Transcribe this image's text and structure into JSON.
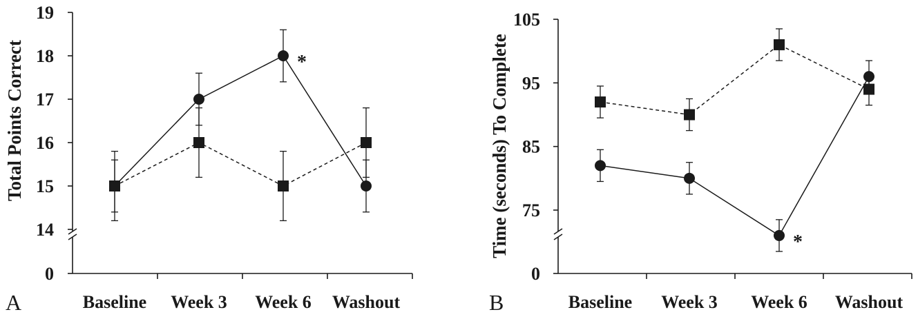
{
  "colors": {
    "ink": "#1a1a1a",
    "background": "#ffffff"
  },
  "chart_data": [
    {
      "type": "line",
      "panel_label": "A",
      "ylabel": "Total Points Correct",
      "categories": [
        "Baseline",
        "Week 3",
        "Week 6",
        "Washout"
      ],
      "y_ticks": [
        14,
        15,
        16,
        17,
        18,
        19
      ],
      "zero_label": "0",
      "ylim": [
        14,
        19
      ],
      "axis_break": true,
      "series": [
        {
          "name": "circle-solid",
          "marker": "circle",
          "line": "solid",
          "values": [
            15,
            17,
            18,
            15
          ],
          "errors": [
            0.6,
            0.6,
            0.6,
            0.6
          ]
        },
        {
          "name": "square-dashed",
          "marker": "square",
          "line": "dashed",
          "values": [
            15,
            16,
            15,
            16
          ],
          "errors": [
            0.8,
            0.8,
            0.8,
            0.8
          ]
        }
      ],
      "annotations": [
        {
          "text": "*",
          "series": 0,
          "index": 2
        }
      ]
    },
    {
      "type": "line",
      "panel_label": "B",
      "ylabel": "Time (seconds) To Complete",
      "categories": [
        "Baseline",
        "Week 3",
        "Week 6",
        "Washout"
      ],
      "y_ticks": [
        75,
        85,
        95,
        105
      ],
      "zero_label": "0",
      "ylim": [
        71,
        105
      ],
      "axis_break": true,
      "series": [
        {
          "name": "circle-solid",
          "marker": "circle",
          "line": "solid",
          "values": [
            82,
            80,
            71,
            96
          ],
          "errors": [
            2.5,
            2.5,
            2.5,
            2.5
          ]
        },
        {
          "name": "square-dashed",
          "marker": "square",
          "line": "dashed",
          "values": [
            92,
            90,
            101,
            94
          ],
          "errors": [
            2.5,
            2.5,
            2.5,
            2.5
          ]
        }
      ],
      "annotations": [
        {
          "text": "*",
          "series": 0,
          "index": 2
        }
      ]
    }
  ]
}
